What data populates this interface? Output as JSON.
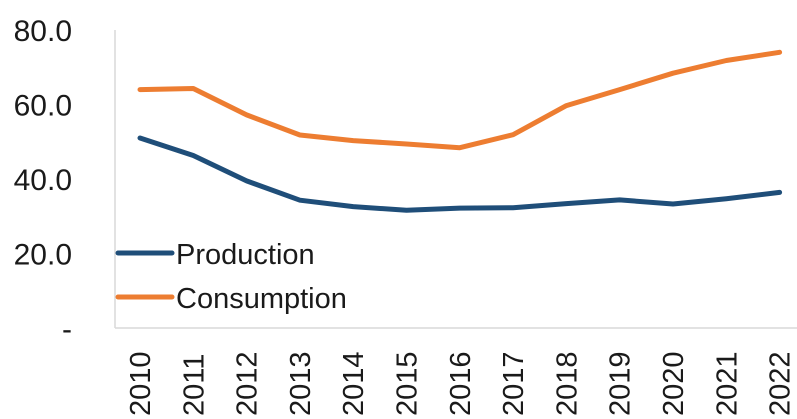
{
  "chart_data": {
    "type": "line",
    "title": "",
    "xlabel": "",
    "ylabel": "",
    "x": [
      "2010",
      "2011",
      "2012",
      "2013",
      "2014",
      "2015",
      "2016",
      "2017",
      "2018",
      "2019",
      "2020",
      "2021",
      "2022"
    ],
    "ylim": [
      0,
      80
    ],
    "y_ticks": [
      0,
      20,
      40,
      60,
      80
    ],
    "y_tick_labels": [
      "-",
      "20.0",
      "40.0",
      "60.0",
      "80.0"
    ],
    "grid": false,
    "legend_position": "bottom-left",
    "series": [
      {
        "name": "Production",
        "color": "#1f4e79",
        "values": [
          51.0,
          46.3,
          39.5,
          34.3,
          32.6,
          31.6,
          32.2,
          32.3,
          33.4,
          34.4,
          33.3,
          34.7,
          36.4
        ]
      },
      {
        "name": "Consumption",
        "color": "#ed7d31",
        "values": [
          64.0,
          64.3,
          57.2,
          51.8,
          50.3,
          49.4,
          48.4,
          51.9,
          59.7,
          64.0,
          68.4,
          71.8,
          74.0
        ]
      }
    ]
  }
}
